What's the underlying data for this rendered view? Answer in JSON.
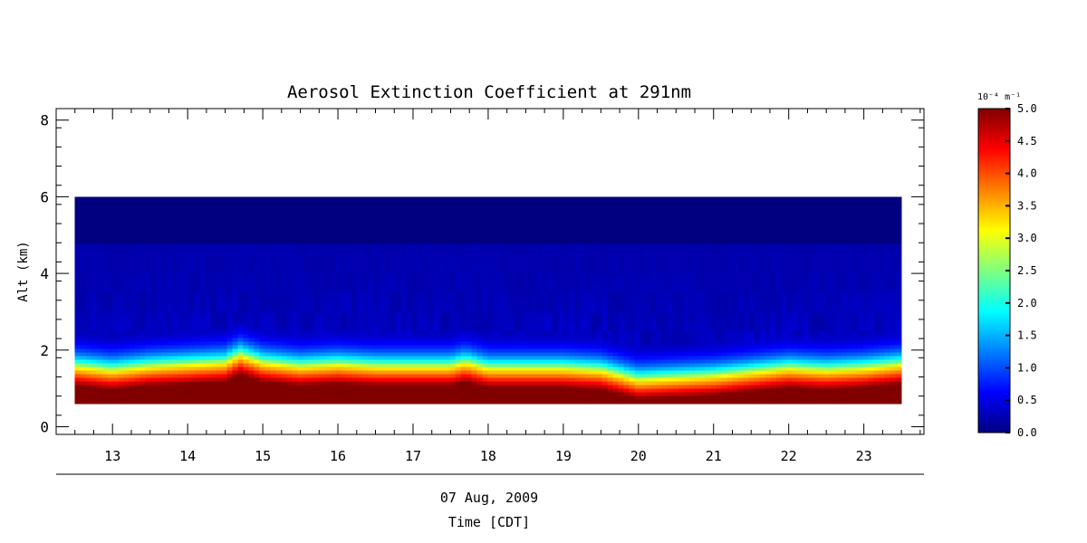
{
  "chart_data": {
    "type": "heatmap",
    "title": "Aerosol Extinction Coefficient at 291nm",
    "ylabel": "Alt (km)",
    "xlabel": "Time [CDT]",
    "date_label": "07 Aug, 2009",
    "xlim": [
      12.25,
      23.8
    ],
    "ylim": [
      -0.2,
      8.3
    ],
    "y_ticks": [
      0,
      2,
      4,
      6,
      8
    ],
    "x_ticks": [
      13,
      14,
      15,
      16,
      17,
      18,
      19,
      20,
      21,
      22,
      23
    ],
    "data_extent": {
      "time": [
        12.5,
        23.5
      ],
      "alt_km": [
        0.6,
        6.0
      ]
    },
    "grid": false,
    "colorscale": "jet",
    "colorbar": {
      "unit_label": "10⁻⁴ m⁻¹",
      "range": [
        0.0,
        5.0
      ],
      "ticks": [
        "0.0",
        "0.5",
        "1.0",
        "1.5",
        "2.0",
        "2.5",
        "3.0",
        "3.5",
        "4.0",
        "4.5",
        "5.0"
      ]
    },
    "boundary_layer_top_km": {
      "time": [
        12.5,
        13.0,
        13.5,
        14.0,
        14.5,
        14.7,
        15.0,
        15.5,
        16.0,
        16.5,
        17.0,
        17.5,
        17.7,
        18.0,
        18.5,
        19.0,
        19.5,
        20.0,
        20.5,
        21.0,
        21.5,
        22.0,
        22.5,
        23.0,
        23.5
      ],
      "alt_km": [
        1.55,
        1.45,
        1.55,
        1.6,
        1.65,
        1.85,
        1.65,
        1.55,
        1.6,
        1.55,
        1.55,
        1.55,
        1.65,
        1.5,
        1.5,
        1.5,
        1.45,
        1.2,
        1.25,
        1.3,
        1.4,
        1.5,
        1.45,
        1.5,
        1.6
      ]
    }
  }
}
